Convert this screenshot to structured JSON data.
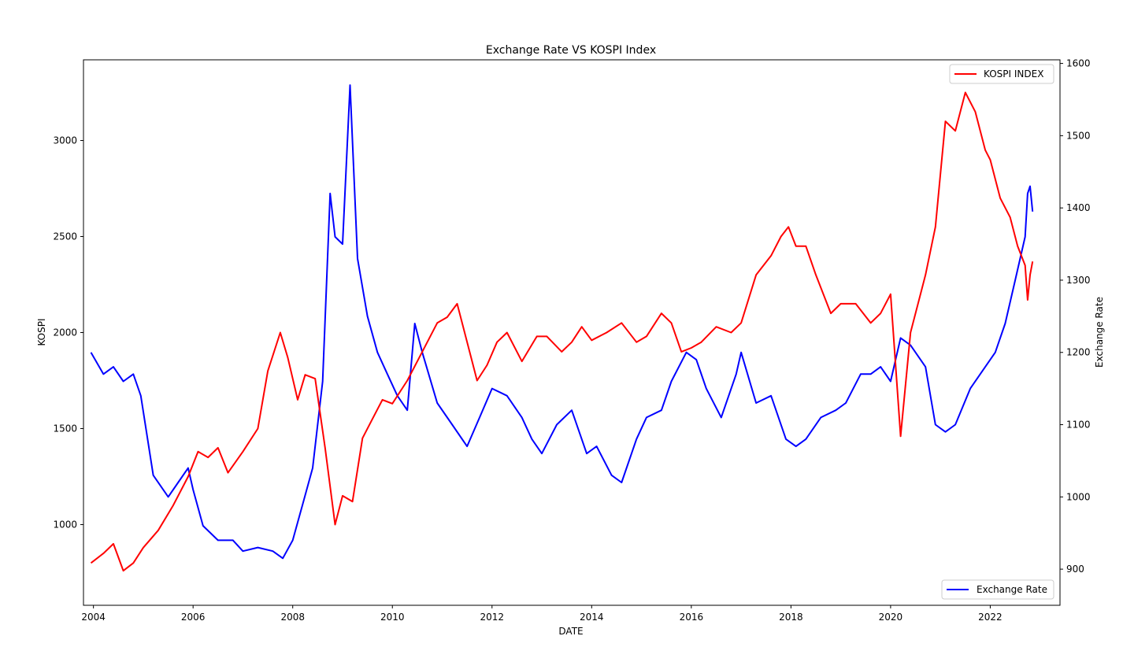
{
  "chart_data": {
    "type": "line",
    "title": "Exchange Rate VS KOSPI Index",
    "xlabel": "DATE",
    "ylabel_left": "KOSPI",
    "ylabel_right": "Exchange Rate",
    "xlim": [
      2003.8,
      2023.4
    ],
    "ylim_left": [
      580,
      3420
    ],
    "ylim_right": [
      850,
      1605
    ],
    "x_ticks": [
      2004,
      2006,
      2008,
      2010,
      2012,
      2014,
      2016,
      2018,
      2020,
      2022
    ],
    "y_ticks_left": [
      1000,
      1500,
      2000,
      2500,
      3000
    ],
    "y_ticks_right": [
      900,
      1000,
      1100,
      1200,
      1300,
      1400,
      1500,
      1600
    ],
    "grid": false,
    "legend_left": {
      "placement": "upper-right",
      "label": "KOSPI INDEX",
      "color": "#ff0000"
    },
    "legend_right": {
      "placement": "lower-right",
      "label": "Exchange Rate",
      "color": "#0000ff"
    },
    "series": [
      {
        "name": "KOSPI INDEX",
        "axis": "left",
        "color": "#ff0000",
        "x": [
          2003.95,
          2004.2,
          2004.4,
          2004.6,
          2004.8,
          2005.0,
          2005.3,
          2005.6,
          2005.9,
          2006.1,
          2006.3,
          2006.5,
          2006.7,
          2007.0,
          2007.3,
          2007.5,
          2007.75,
          2007.9,
          2008.1,
          2008.25,
          2008.45,
          2008.65,
          2008.85,
          2009.0,
          2009.2,
          2009.4,
          2009.6,
          2009.8,
          2010.0,
          2010.3,
          2010.6,
          2010.9,
          2011.1,
          2011.3,
          2011.6,
          2011.7,
          2011.9,
          2012.1,
          2012.3,
          2012.6,
          2012.9,
          2013.1,
          2013.4,
          2013.6,
          2013.8,
          2014.0,
          2014.3,
          2014.6,
          2014.9,
          2015.1,
          2015.4,
          2015.6,
          2015.8,
          2016.0,
          2016.2,
          2016.5,
          2016.8,
          2017.0,
          2017.3,
          2017.6,
          2017.8,
          2017.95,
          2018.1,
          2018.3,
          2018.5,
          2018.8,
          2019.0,
          2019.3,
          2019.6,
          2019.8,
          2020.0,
          2020.2,
          2020.4,
          2020.7,
          2020.9,
          2021.1,
          2021.3,
          2021.5,
          2021.7,
          2021.9,
          2022.0,
          2022.2,
          2022.4,
          2022.55,
          2022.7,
          2022.75,
          2022.8,
          2022.85
        ],
        "values": [
          800,
          850,
          900,
          760,
          800,
          880,
          970,
          1100,
          1250,
          1380,
          1350,
          1400,
          1270,
          1380,
          1500,
          1800,
          2000,
          1870,
          1650,
          1780,
          1760,
          1400,
          1000,
          1150,
          1120,
          1450,
          1550,
          1650,
          1630,
          1750,
          1900,
          2050,
          2080,
          2150,
          1850,
          1750,
          1830,
          1950,
          2000,
          1850,
          1980,
          1980,
          1900,
          1950,
          2030,
          1960,
          2000,
          2050,
          1950,
          1980,
          2100,
          2050,
          1900,
          1920,
          1950,
          2030,
          2000,
          2050,
          2300,
          2400,
          2500,
          2550,
          2450,
          2450,
          2300,
          2100,
          2150,
          2150,
          2050,
          2100,
          2200,
          1460,
          2000,
          2300,
          2550,
          3100,
          3050,
          3250,
          3150,
          2950,
          2900,
          2700,
          2600,
          2450,
          2350,
          2170,
          2300,
          2370
        ]
      },
      {
        "name": "Exchange Rate",
        "axis": "right",
        "color": "#0000ff",
        "x": [
          2003.95,
          2004.2,
          2004.4,
          2004.6,
          2004.8,
          2004.95,
          2005.2,
          2005.5,
          2005.7,
          2005.9,
          2006.0,
          2006.2,
          2006.5,
          2006.8,
          2007.0,
          2007.3,
          2007.6,
          2007.8,
          2008.0,
          2008.2,
          2008.4,
          2008.6,
          2008.75,
          2008.85,
          2009.0,
          2009.15,
          2009.3,
          2009.5,
          2009.7,
          2009.9,
          2010.1,
          2010.3,
          2010.45,
          2010.6,
          2010.9,
          2011.2,
          2011.5,
          2011.75,
          2012.0,
          2012.3,
          2012.6,
          2012.8,
          2013.0,
          2013.3,
          2013.6,
          2013.9,
          2014.1,
          2014.4,
          2014.6,
          2014.9,
          2015.1,
          2015.4,
          2015.6,
          2015.9,
          2016.1,
          2016.3,
          2016.6,
          2016.9,
          2017.0,
          2017.3,
          2017.6,
          2017.9,
          2018.1,
          2018.3,
          2018.6,
          2018.9,
          2019.1,
          2019.4,
          2019.6,
          2019.8,
          2020.0,
          2020.2,
          2020.4,
          2020.7,
          2020.9,
          2021.1,
          2021.3,
          2021.6,
          2021.9,
          2022.1,
          2022.3,
          2022.5,
          2022.7,
          2022.75,
          2022.8,
          2022.85
        ],
        "values": [
          1200,
          1170,
          1180,
          1160,
          1170,
          1140,
          1030,
          1000,
          1020,
          1040,
          1010,
          960,
          940,
          940,
          925,
          930,
          925,
          915,
          940,
          990,
          1040,
          1160,
          1420,
          1360,
          1350,
          1570,
          1330,
          1250,
          1200,
          1170,
          1140,
          1120,
          1240,
          1200,
          1130,
          1100,
          1070,
          1110,
          1150,
          1140,
          1110,
          1080,
          1060,
          1100,
          1120,
          1060,
          1070,
          1030,
          1020,
          1080,
          1110,
          1120,
          1160,
          1200,
          1190,
          1150,
          1110,
          1170,
          1200,
          1130,
          1140,
          1080,
          1070,
          1080,
          1110,
          1120,
          1130,
          1170,
          1170,
          1180,
          1160,
          1220,
          1210,
          1180,
          1100,
          1090,
          1100,
          1150,
          1180,
          1200,
          1240,
          1300,
          1360,
          1420,
          1430,
          1395
        ]
      }
    ]
  }
}
